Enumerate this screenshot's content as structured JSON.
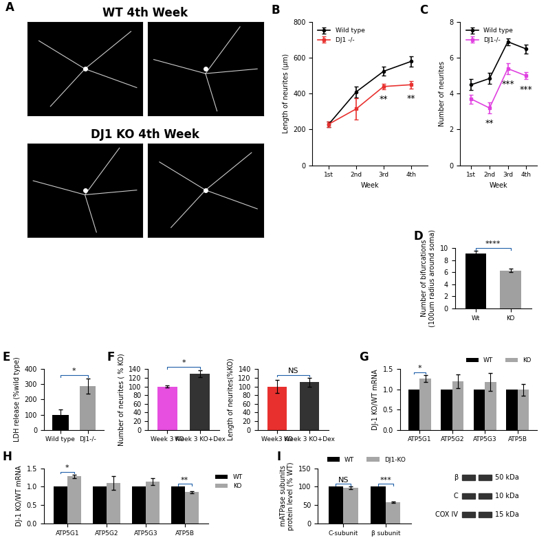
{
  "panel_A": {
    "panel_label": "A",
    "rows": [
      "WT 4th Week",
      "DJ1 KO 4th Week"
    ]
  },
  "chart_data": [
    {
      "type": "line",
      "panel_label": "B",
      "categories": [
        "1st",
        "2nd",
        "3rd",
        "4th"
      ],
      "x_label": "Week",
      "y_label": "Length of neurites (µm)",
      "ylim": [
        0,
        800
      ],
      "yticks": [
        0,
        200,
        400,
        600,
        800
      ],
      "legend": "upper left",
      "series": [
        {
          "name": "Wild type",
          "color": "#000000",
          "marker": "o",
          "values": [
            230,
            410,
            525,
            580
          ],
          "errors": [
            15,
            30,
            25,
            30
          ]
        },
        {
          "name": "DJ1 -/-",
          "color": "#e8312f",
          "marker": "s",
          "values": [
            230,
            315,
            440,
            450
          ],
          "errors": [
            15,
            60,
            15,
            20
          ]
        }
      ],
      "annotations": [
        {
          "text": "**",
          "category": "3rd"
        },
        {
          "text": "**",
          "category": "4th"
        }
      ]
    },
    {
      "type": "line",
      "panel_label": "C",
      "categories": [
        "1st",
        "2nd",
        "3rd",
        "4th"
      ],
      "x_label": "Week",
      "y_label": "Number of neurites",
      "ylim": [
        0,
        8
      ],
      "yticks": [
        0,
        2,
        4,
        6,
        8
      ],
      "legend": "upper left",
      "series": [
        {
          "name": "Wild type",
          "color": "#000000",
          "marker": "o",
          "values": [
            4.5,
            4.85,
            6.9,
            6.5
          ],
          "errors": [
            0.3,
            0.3,
            0.2,
            0.25
          ]
        },
        {
          "name": "DJ1-/-",
          "color": "#e040e0",
          "marker": "s",
          "values": [
            3.7,
            3.2,
            5.4,
            5.0
          ],
          "errors": [
            0.25,
            0.3,
            0.3,
            0.2
          ]
        }
      ],
      "annotations": [
        {
          "text": "**",
          "category": "2nd"
        },
        {
          "text": "***",
          "category": "3rd"
        },
        {
          "text": "***",
          "category": "4th"
        }
      ]
    },
    {
      "type": "bar",
      "panel_label": "D",
      "categories": [
        "Wt",
        "KO"
      ],
      "y_label": "Number of bifurcations\n(100um radius around soma)",
      "values": [
        9.1,
        6.3
      ],
      "errors": [
        0.4,
        0.3
      ],
      "colors": [
        "#000000",
        "#a0a0a0"
      ],
      "ylim": [
        0,
        10
      ],
      "yticks": [
        0,
        2,
        4,
        6,
        8,
        10
      ],
      "annotations": [
        {
          "text": "****",
          "categories": [
            "Wt",
            "KO"
          ]
        }
      ]
    },
    {
      "type": "bar",
      "panel_label": "E",
      "categories": [
        "Wild type",
        "DJ1-/-"
      ],
      "y_label": "LDH release (%wild type)",
      "values": [
        100,
        290
      ],
      "errors": [
        35,
        50
      ],
      "colors": [
        "#000000",
        "#a0a0a0"
      ],
      "ylim": [
        0,
        400
      ],
      "yticks": [
        0,
        100,
        200,
        300,
        400
      ],
      "annotations": [
        {
          "text": "*",
          "categories": [
            "Wild type",
            "DJ1-/-"
          ]
        }
      ]
    },
    {
      "type": "bar",
      "panel_label": "F",
      "categories": [
        "Week 3 KO",
        "Week 3 KO+Dex"
      ],
      "y_label": "Number of neurites ( % KO)",
      "values": [
        100,
        130
      ],
      "errors": [
        3,
        8
      ],
      "colors": [
        "#e64fe0",
        "#333333"
      ],
      "ylim": [
        0,
        140
      ],
      "yticks": [
        0,
        20,
        40,
        60,
        80,
        100,
        120,
        140
      ],
      "annotations": [
        {
          "text": "*",
          "categories": [
            "Week 3 KO",
            "Week 3 KO+Dex"
          ]
        }
      ]
    },
    {
      "type": "bar",
      "categories": [
        "Week3 KO",
        "Week 3 KO+Dex"
      ],
      "y_label": "Length of neurites(%KO)",
      "values": [
        100,
        110
      ],
      "errors": [
        15,
        10
      ],
      "colors": [
        "#e8312f",
        "#333333"
      ],
      "ylim": [
        0,
        140
      ],
      "yticks": [
        0,
        20,
        40,
        60,
        80,
        100,
        120,
        140
      ],
      "annotations": [
        {
          "text": "NS",
          "categories": [
            "Week3 KO",
            "Week 3 KO+Dex"
          ]
        }
      ]
    },
    {
      "type": "bar",
      "panel_label": "G",
      "categories": [
        "ATP5G1",
        "ATP5G2",
        "ATP5G3",
        "ATP5B"
      ],
      "y_label": "DJ-1 KO/WT mRNA",
      "legend": "top",
      "ylim": [
        0,
        1.5
      ],
      "yticks": [
        {
          "value": 0,
          "label": "0.0"
        },
        0.5,
        {
          "value": 1,
          "label": "1.0"
        },
        1.5
      ],
      "series": [
        {
          "name": "WT",
          "color": "#000000",
          "values": [
            1,
            1,
            1,
            1
          ]
        },
        {
          "name": "KO",
          "color": "#a6a6a6",
          "values": [
            1.27,
            1.2,
            1.18,
            0.99
          ],
          "errors": [
            0.08,
            0.17,
            0.22,
            0.14
          ]
        }
      ],
      "annotations": [
        {
          "text": "*",
          "category": "ATP5G1"
        }
      ]
    },
    {
      "type": "bar",
      "panel_label": "H",
      "categories": [
        "ATP5G1",
        "ATP5G2",
        "ATP5G3",
        "ATP5B"
      ],
      "y_label": "DJ-1 KO/WT mRNA",
      "legend": "right",
      "ylim": [
        0,
        1.5
      ],
      "yticks": [
        {
          "value": 0,
          "label": "0.0"
        },
        0.5,
        {
          "value": 1,
          "label": "1.0"
        },
        1.5
      ],
      "series": [
        {
          "name": "WT",
          "color": "#000000",
          "values": [
            1,
            1,
            1,
            1
          ]
        },
        {
          "name": "KO",
          "color": "#a6a6a6",
          "values": [
            1.28,
            1.1,
            1.14,
            0.85
          ],
          "errors": [
            0.05,
            0.18,
            0.1,
            0.02
          ]
        }
      ],
      "annotations": [
        {
          "text": "*",
          "category": "ATP5G1"
        },
        {
          "text": "**",
          "category": "ATP5B"
        }
      ]
    },
    {
      "type": "bar",
      "panel_label": "I",
      "categories": [
        "C-subunit",
        "β subunit"
      ],
      "y_label": "mATPase subunits\nprotein level (% WT)",
      "legend": "top",
      "ylim": [
        0,
        150
      ],
      "yticks": [
        0,
        50,
        100,
        150
      ],
      "series": [
        {
          "name": "WT",
          "color": "#000000",
          "values": [
            100,
            100
          ]
        },
        {
          "name": "DJ1-KO",
          "color": "#a6a6a6",
          "values": [
            97,
            58
          ],
          "errors": [
            3,
            2
          ]
        }
      ],
      "annotations": [
        {
          "text": "NS",
          "category": "C-subunit"
        },
        {
          "text": "***",
          "category": "β subunit"
        }
      ],
      "blot": {
        "bands": [
          {
            "name": "β",
            "size": "50 kDa"
          },
          {
            "name": "C",
            "size": "10 kDa"
          },
          {
            "name": "COX IV",
            "size": "15 kDa"
          }
        ]
      }
    }
  ]
}
